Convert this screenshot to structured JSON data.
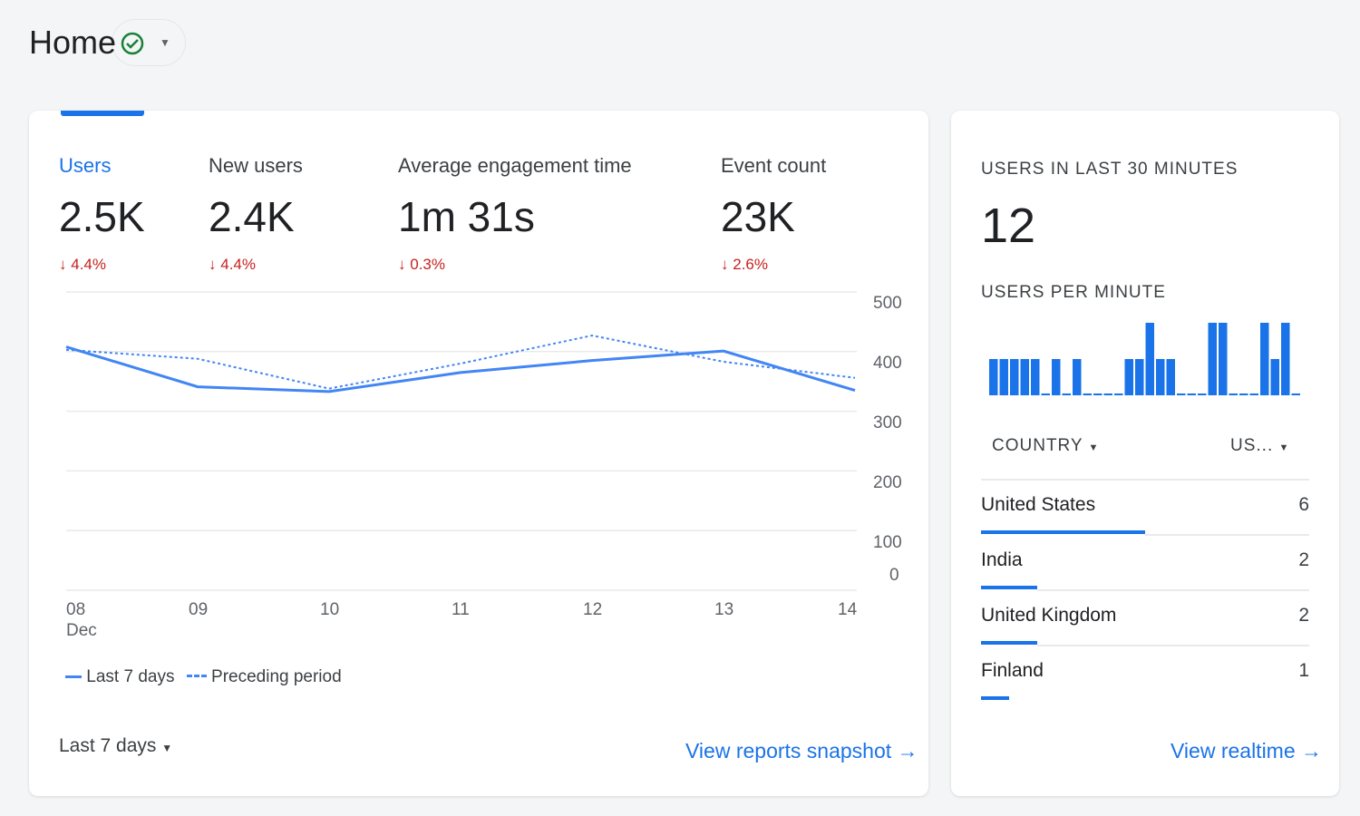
{
  "header": {
    "title": "Home",
    "status_icon": "check-circle-icon"
  },
  "metrics": [
    {
      "label": "Users",
      "value": "2.5K",
      "delta": "4.4%",
      "active": true
    },
    {
      "label": "New users",
      "value": "2.4K",
      "delta": "4.4%"
    },
    {
      "label": "Average engagement time",
      "value": "1m 31s",
      "delta": "0.3%"
    },
    {
      "label": "Event count",
      "value": "23K",
      "delta": "2.6%"
    }
  ],
  "chart_data": {
    "type": "line",
    "x": [
      "08",
      "09",
      "10",
      "11",
      "12",
      "13",
      "14"
    ],
    "x_sublabel": "Dec",
    "ylim": [
      0,
      500
    ],
    "yticks": [
      "500",
      "400",
      "300",
      "200",
      "100",
      "0"
    ],
    "grid": true,
    "legend_position": "bottom-left",
    "series": [
      {
        "name": "Last 7 days",
        "values": [
          408,
          341,
          333,
          365,
          385,
          401,
          335
        ],
        "style": "solid",
        "color": "#4285f4"
      },
      {
        "name": "Preceding period",
        "values": [
          403,
          388,
          338,
          380,
          427,
          383,
          356
        ],
        "style": "dashed",
        "color": "#4285f4"
      }
    ]
  },
  "footer": {
    "date_range": "Last 7 days",
    "link": "View reports snapshot"
  },
  "realtime": {
    "title": "USERS IN LAST 30 MINUTES",
    "count": "12",
    "per_minute_label": "USERS PER MINUTE",
    "per_minute": [
      1,
      1,
      1,
      1,
      1,
      0,
      1,
      0,
      1,
      0,
      0,
      0,
      0,
      1,
      1,
      2,
      1,
      1,
      0,
      0,
      0,
      2,
      2,
      0,
      0,
      0,
      2,
      1,
      2,
      0
    ],
    "dim_label": "COUNTRY",
    "metric_label": "US...",
    "rows": [
      {
        "country": "United States",
        "value": "6",
        "share": 0.5
      },
      {
        "country": "India",
        "value": "2",
        "share": 0.17
      },
      {
        "country": "United Kingdom",
        "value": "2",
        "share": 0.17
      },
      {
        "country": "Finland",
        "value": "1",
        "share": 0.085
      }
    ],
    "link": "View realtime"
  },
  "colors": {
    "accent": "#1a73e8",
    "negative": "#c5221f"
  }
}
